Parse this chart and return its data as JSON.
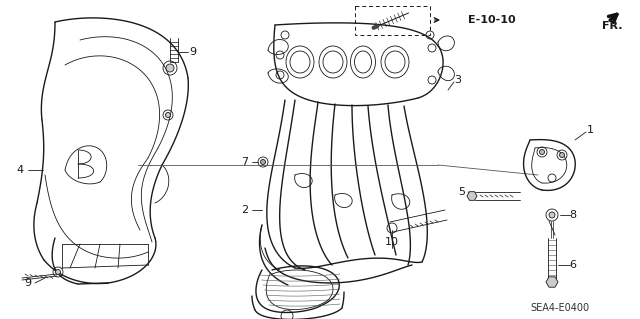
{
  "fig_width": 6.4,
  "fig_height": 3.19,
  "dpi": 100,
  "bg_color": "#ffffff",
  "line_color": "#1a1a1a",
  "gray_color": "#888888",
  "diagram_code": "SEA4-E0400",
  "labels": {
    "ref": "E-10-10",
    "dir": "FR.",
    "parts": {
      "1": "1",
      "2": "2",
      "3": "3",
      "4": "4",
      "5": "5",
      "6": "6",
      "7": "7",
      "8": "8",
      "9": "9",
      "10": "10"
    }
  },
  "lw_main": 1.0,
  "lw_thick": 1.5,
  "lw_thin": 0.6
}
